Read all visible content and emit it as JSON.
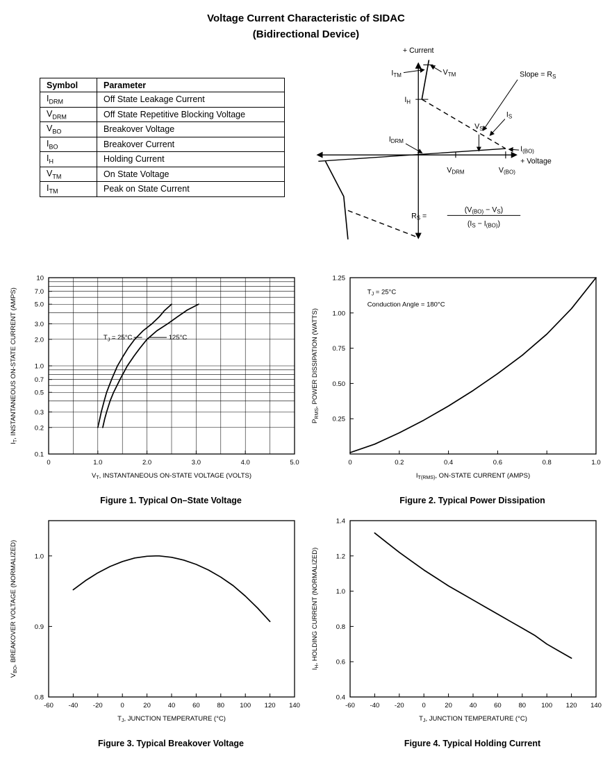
{
  "colors": {
    "ink": "#000000",
    "background": "#ffffff"
  },
  "page": {
    "title_line1": "Voltage Current Characteristic of SIDAC",
    "title_line2": "(Bidirectional Device)"
  },
  "symbol_table": {
    "headers": [
      "Symbol",
      "Parameter"
    ],
    "rows": [
      {
        "symbol": "I_{DRM}",
        "parameter": "Off State Leakage Current"
      },
      {
        "symbol": "V_{DRM}",
        "parameter": "Off State Repetitive Blocking Voltage"
      },
      {
        "symbol": "V_{BO}",
        "parameter": "Breakover Voltage"
      },
      {
        "symbol": "I_{BO}",
        "parameter": "Breakover Current"
      },
      {
        "symbol": "I_{H}",
        "parameter": "Holding Current"
      },
      {
        "symbol": "V_{TM}",
        "parameter": "On State Voltage"
      },
      {
        "symbol": "I_{TM}",
        "parameter": "Peak on State Current"
      }
    ]
  },
  "diagram": {
    "labels": {
      "current_axis": "+ Current",
      "voltage_axis": "+ Voltage",
      "itm": "I_{TM}",
      "vtm": "V_{TM}",
      "slope": "Slope = R_{S}",
      "ih": "I_{H}",
      "is": "I_{S}",
      "vs": "V_{S}",
      "idrm": "I_{DRM}",
      "ibo": "I_{(BO)}",
      "vdrm": "V_{DRM}",
      "vbo": "V_{(BO)}",
      "formula_lhs": "R_{S}  =",
      "formula_num": "(V_{(BO)} − V_{S})",
      "formula_den": "(I_{S} − I_{(BO)})"
    }
  },
  "chart_data": [
    {
      "type": "line",
      "title": "Figure 1. Typical On–State Voltage",
      "xlabel": "V_{T}, INSTANTANEOUS ON-STATE VOLTAGE (VOLTS)",
      "ylabel": "I_{T}, INSTANTANEOUS ON-STATE CURRENT (AMPS)",
      "xlim": [
        0,
        5
      ],
      "ylim": [
        0.1,
        10
      ],
      "yscale": "log",
      "x_ticks": [
        0,
        1,
        2,
        3,
        4,
        5
      ],
      "x_tick_labels": [
        "0",
        "1.0",
        "2.0",
        "3.0",
        "4.0",
        "5.0"
      ],
      "y_ticks": [
        0.1,
        0.2,
        0.3,
        0.5,
        0.7,
        1,
        2,
        3,
        5,
        7,
        10
      ],
      "y_tick_labels": [
        "0.1",
        "0.2",
        "0.3",
        "0.5",
        "0.7",
        "1.0",
        "2.0",
        "3.0",
        "5.0",
        "7.0",
        "10"
      ],
      "grid_x": [
        0.5,
        1,
        1.5,
        2,
        2.5,
        3,
        3.5,
        4,
        4.5
      ],
      "grid_y": [
        0.2,
        0.3,
        0.4,
        0.5,
        0.6,
        0.7,
        0.8,
        0.9,
        1,
        2,
        3,
        4,
        5,
        6,
        7,
        8,
        9
      ],
      "series": [
        {
          "name": "TJ = 25°C",
          "points": [
            [
              1.0,
              0.2
            ],
            [
              1.04,
              0.25
            ],
            [
              1.07,
              0.3
            ],
            [
              1.13,
              0.4
            ],
            [
              1.18,
              0.5
            ],
            [
              1.28,
              0.7
            ],
            [
              1.4,
              1.0
            ],
            [
              1.52,
              1.3
            ],
            [
              1.62,
              1.6
            ],
            [
              1.75,
              2.0
            ],
            [
              1.92,
              2.5
            ],
            [
              2.1,
              3.0
            ],
            [
              2.25,
              3.6
            ],
            [
              2.35,
              4.2
            ],
            [
              2.5,
              5.0
            ]
          ]
        },
        {
          "name": "125°C",
          "points": [
            [
              1.1,
              0.2
            ],
            [
              1.14,
              0.25
            ],
            [
              1.18,
              0.3
            ],
            [
              1.25,
              0.4
            ],
            [
              1.32,
              0.5
            ],
            [
              1.45,
              0.7
            ],
            [
              1.6,
              1.0
            ],
            [
              1.74,
              1.3
            ],
            [
              1.86,
              1.6
            ],
            [
              2.0,
              2.0
            ],
            [
              2.2,
              2.5
            ],
            [
              2.42,
              3.0
            ],
            [
              2.62,
              3.6
            ],
            [
              2.82,
              4.3
            ],
            [
              3.05,
              5.0
            ]
          ]
        }
      ],
      "annotations": [
        {
          "text": "T_{J} = 25°C",
          "x": 1.7,
          "y": 2.1,
          "anchor": "end",
          "line": [
            1.73,
            2.1,
            1.9,
            2.1
          ]
        },
        {
          "text": "125°C",
          "x": 2.44,
          "y": 2.1,
          "anchor": "start",
          "line": [
            2.06,
            2.1,
            2.4,
            2.1
          ]
        }
      ]
    },
    {
      "type": "line",
      "title": "Figure 2. Typical Power Dissipation",
      "xlabel": "I_{T(RMS)}, ON-STATE CURRENT (AMPS)",
      "ylabel": "P_{RMS}, POWER DISSIPATION (WATTS)",
      "xlim": [
        0,
        1
      ],
      "ylim": [
        0,
        1.25
      ],
      "yscale": "linear",
      "x_ticks": [
        0,
        0.2,
        0.4,
        0.6,
        0.8,
        1.0
      ],
      "x_tick_labels": [
        "0",
        "0.2",
        "0.4",
        "0.6",
        "0.8",
        "1.0"
      ],
      "y_ticks": [
        0.25,
        0.5,
        0.75,
        1.0,
        1.25
      ],
      "y_tick_labels": [
        "0.25",
        "0.50",
        "0.75",
        "1.00",
        "1.25"
      ],
      "grid_x": [],
      "grid_y": [],
      "series": [
        {
          "name": "power",
          "points": [
            [
              0,
              0.01
            ],
            [
              0.1,
              0.07
            ],
            [
              0.2,
              0.15
            ],
            [
              0.3,
              0.24
            ],
            [
              0.4,
              0.34
            ],
            [
              0.5,
              0.45
            ],
            [
              0.6,
              0.57
            ],
            [
              0.7,
              0.7
            ],
            [
              0.8,
              0.85
            ],
            [
              0.9,
              1.03
            ],
            [
              1.0,
              1.25
            ]
          ]
        }
      ],
      "annotations": [
        {
          "text": "T_{J} = 25°C",
          "x": 0.07,
          "y": 1.15,
          "anchor": "start"
        },
        {
          "text": "Conduction Angle = 180°C",
          "x": 0.07,
          "y": 1.06,
          "anchor": "start"
        }
      ]
    },
    {
      "type": "line",
      "title": "Figure 3. Typical Breakover Voltage",
      "xlabel": "T_{J}, JUNCTION TEMPERATURE (°C)",
      "ylabel": "V_{BO}, BREAKOVER VOLTAGE (NORMALIZED)",
      "xlim": [
        -60,
        140
      ],
      "ylim": [
        0.8,
        1.05
      ],
      "yscale": "linear",
      "x_ticks": [
        -60,
        -40,
        -20,
        0,
        20,
        40,
        60,
        80,
        100,
        120,
        140
      ],
      "x_tick_labels": [
        "-60",
        "-40",
        "-20",
        "0",
        "20",
        "40",
        "60",
        "80",
        "100",
        "120",
        "140"
      ],
      "y_ticks": [
        0.8,
        0.9,
        1.0
      ],
      "y_tick_labels": [
        "0.8",
        "0.9",
        "1.0"
      ],
      "grid_x": [],
      "grid_y": [],
      "series": [
        {
          "name": "vbo",
          "points": [
            [
              -40,
              0.952
            ],
            [
              -30,
              0.965
            ],
            [
              -20,
              0.976
            ],
            [
              -10,
              0.985
            ],
            [
              0,
              0.992
            ],
            [
              10,
              0.997
            ],
            [
              20,
              0.9995
            ],
            [
              27,
              1.0
            ],
            [
              30,
              1.0
            ],
            [
              40,
              0.998
            ],
            [
              50,
              0.994
            ],
            [
              60,
              0.988
            ],
            [
              70,
              0.98
            ],
            [
              80,
              0.97
            ],
            [
              90,
              0.958
            ],
            [
              100,
              0.943
            ],
            [
              110,
              0.926
            ],
            [
              120,
              0.907
            ]
          ]
        }
      ],
      "annotations": []
    },
    {
      "type": "line",
      "title": "Figure 4. Typical Holding Current",
      "xlabel": "T_{J}, JUNCTION TEMPERATURE (°C)",
      "ylabel": "I_{H}, HOLDING CURRENT (NORMALIZED)",
      "xlim": [
        -60,
        140
      ],
      "ylim": [
        0.4,
        1.4
      ],
      "yscale": "linear",
      "x_ticks": [
        -60,
        -40,
        -20,
        0,
        20,
        40,
        60,
        80,
        100,
        120,
        140
      ],
      "x_tick_labels": [
        "-60",
        "-40",
        "-20",
        "0",
        "20",
        "40",
        "60",
        "80",
        "100",
        "120",
        "140"
      ],
      "y_ticks": [
        0.4,
        0.6,
        0.8,
        1.0,
        1.2,
        1.4
      ],
      "y_tick_labels": [
        "0.4",
        "0.6",
        "0.8",
        "1.0",
        "1.2",
        "1.4"
      ],
      "grid_x": [],
      "grid_y": [],
      "series": [
        {
          "name": "ih",
          "points": [
            [
              -40,
              1.33
            ],
            [
              -30,
              1.275
            ],
            [
              -20,
              1.22
            ],
            [
              -10,
              1.17
            ],
            [
              0,
              1.12
            ],
            [
              10,
              1.075
            ],
            [
              20,
              1.03
            ],
            [
              30,
              0.99
            ],
            [
              40,
              0.95
            ],
            [
              50,
              0.91
            ],
            [
              60,
              0.87
            ],
            [
              70,
              0.83
            ],
            [
              80,
              0.79
            ],
            [
              90,
              0.75
            ],
            [
              100,
              0.7
            ],
            [
              110,
              0.66
            ],
            [
              120,
              0.62
            ]
          ]
        }
      ],
      "annotations": []
    }
  ]
}
